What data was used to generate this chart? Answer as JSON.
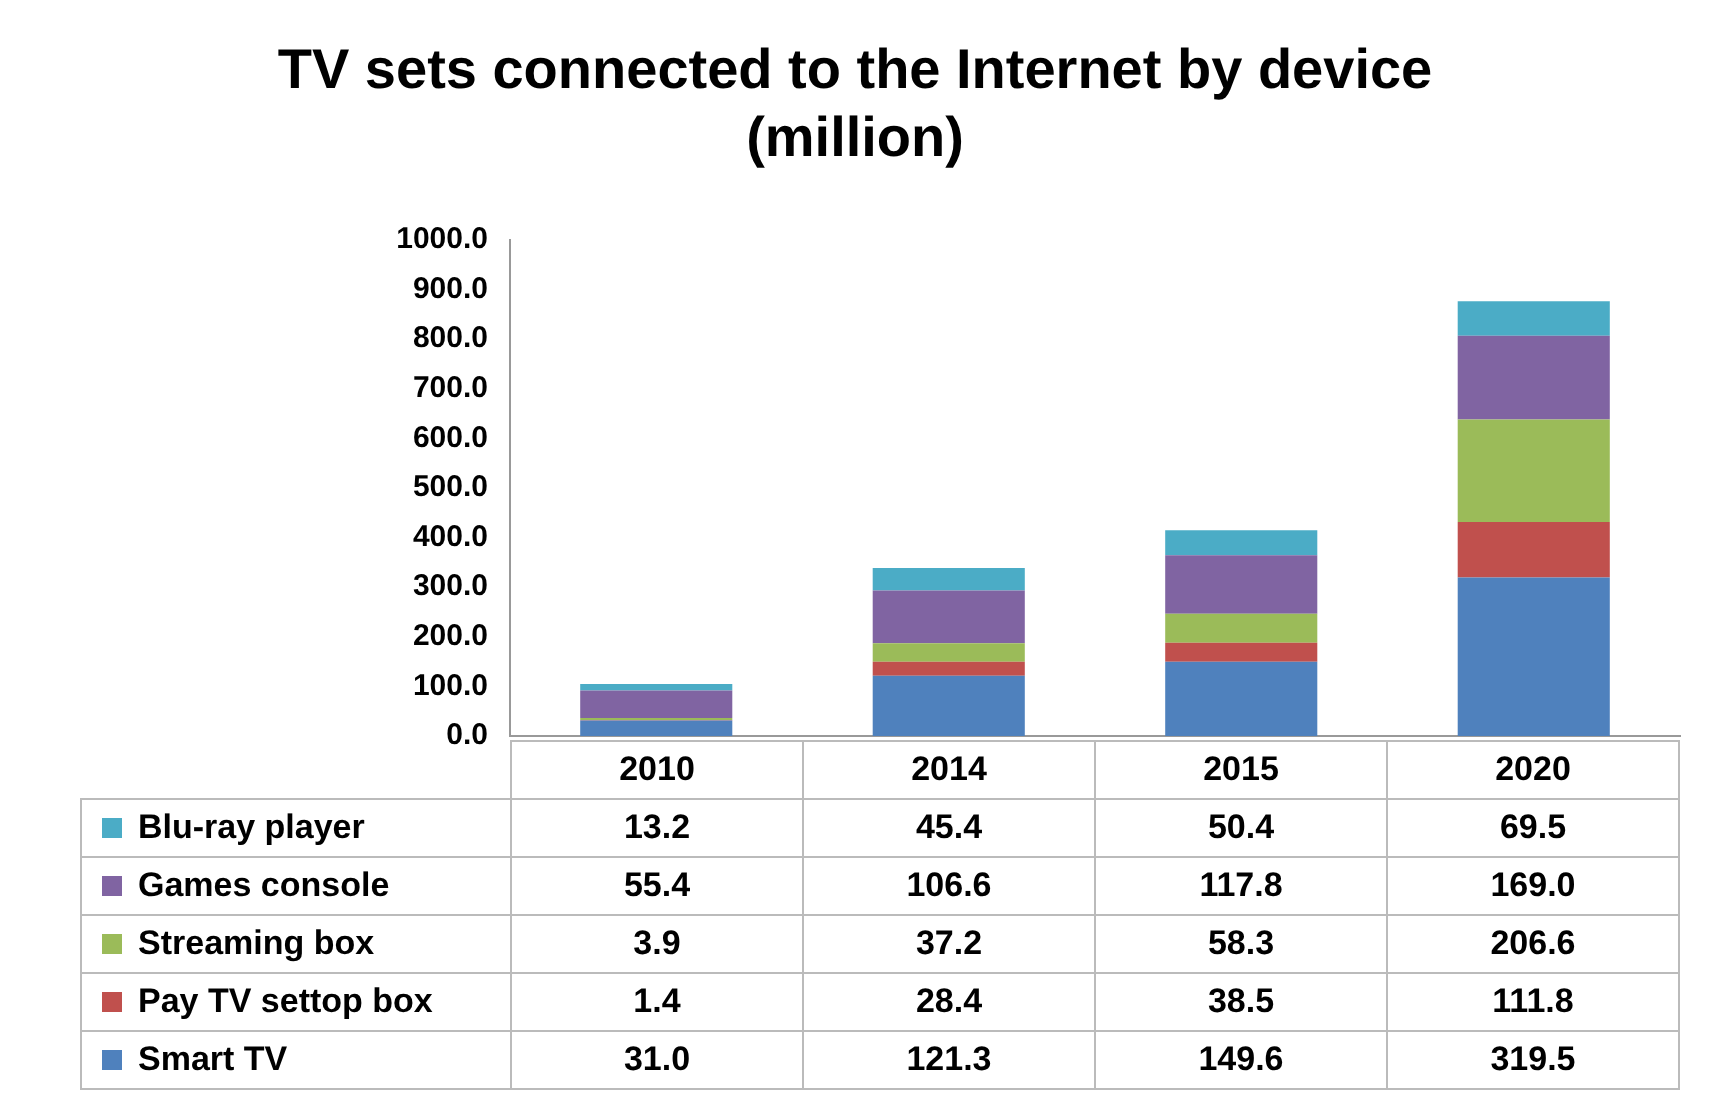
{
  "chart_data": {
    "type": "bar",
    "title": "TV sets connected to the Internet by device (million)",
    "categories": [
      "2010",
      "2014",
      "2015",
      "2020"
    ],
    "stacked": true,
    "grid": false,
    "legend": "bottom",
    "ylim": [
      0,
      1000
    ],
    "yticks": [
      {
        "value": 0,
        "label": "0.0"
      },
      {
        "value": 100,
        "label": "100.0"
      },
      {
        "value": 200,
        "label": "200.0"
      },
      {
        "value": 300,
        "label": "300.0"
      },
      {
        "value": 400,
        "label": "400.0"
      },
      {
        "value": 500,
        "label": "500.0"
      },
      {
        "value": 600,
        "label": "600.0"
      },
      {
        "value": 700,
        "label": "700.0"
      },
      {
        "value": 800,
        "label": "800.0"
      },
      {
        "value": 900,
        "label": "900.0"
      },
      {
        "value": 1000,
        "label": "1000.0"
      }
    ],
    "series": [
      {
        "name": "Smart TV",
        "color": "#4f81bd",
        "values": [
          31.0,
          121.3,
          149.6,
          319.5
        ],
        "value_labels": [
          "31.0",
          "121.3",
          "149.6",
          "319.5"
        ]
      },
      {
        "name": "Pay TV settop box",
        "color": "#c0504d",
        "values": [
          1.4,
          28.4,
          38.5,
          111.8
        ],
        "value_labels": [
          "1.4",
          "28.4",
          "38.5",
          "111.8"
        ]
      },
      {
        "name": "Streaming box",
        "color": "#9bbb59",
        "values": [
          3.9,
          37.2,
          58.3,
          206.6
        ],
        "value_labels": [
          "3.9",
          "37.2",
          "58.3",
          "206.6"
        ]
      },
      {
        "name": "Games console",
        "color": "#8064a2",
        "values": [
          55.4,
          106.6,
          117.8,
          169.0
        ],
        "value_labels": [
          "55.4",
          "106.6",
          "117.8",
          "169.0"
        ]
      },
      {
        "name": "Blu-ray player",
        "color": "#4bacc6",
        "values": [
          13.2,
          45.4,
          50.4,
          69.5
        ],
        "value_labels": [
          "13.2",
          "45.4",
          "50.4",
          "69.5"
        ]
      }
    ]
  }
}
